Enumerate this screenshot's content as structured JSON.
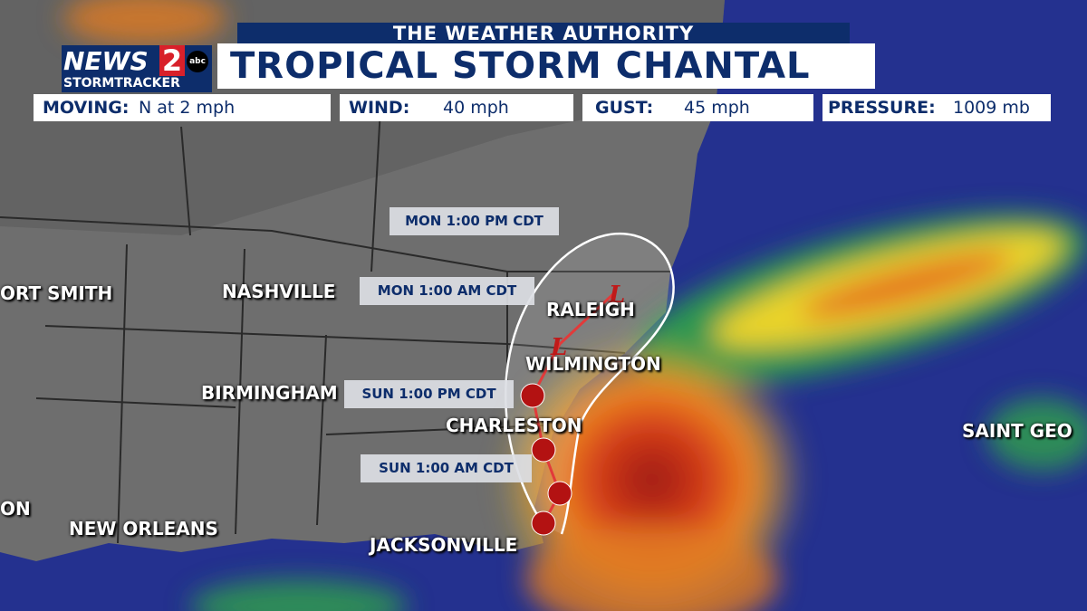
{
  "header": {
    "authority": "THE WEATHER AUTHORITY",
    "title": "TROPICAL STORM CHANTAL"
  },
  "logo": {
    "main": "NEWS",
    "number": "2",
    "network": "abc",
    "sub": "STORMTRACKER"
  },
  "stats": [
    {
      "label": "MOVING:",
      "value": "N at 2 mph"
    },
    {
      "label": "WIND:",
      "value": "40 mph"
    },
    {
      "label": "GUST:",
      "value": "45 mph"
    },
    {
      "label": "PRESSURE:",
      "value": "1009 mb"
    }
  ],
  "forecast_times": [
    "MON 1:00 PM CDT",
    "MON 1:00 AM CDT",
    "SUN 1:00 PM CDT",
    "SUN 1:00 AM CDT"
  ],
  "cities": [
    "ORT SMITH",
    "NASHVILLE",
    "RALEIGH",
    "WILMINGTON",
    "BIRMINGHAM",
    "CHARLESTON",
    "SAINT GEO",
    "ON",
    "NEW ORLEANS",
    "JACKSONVILLE"
  ]
}
